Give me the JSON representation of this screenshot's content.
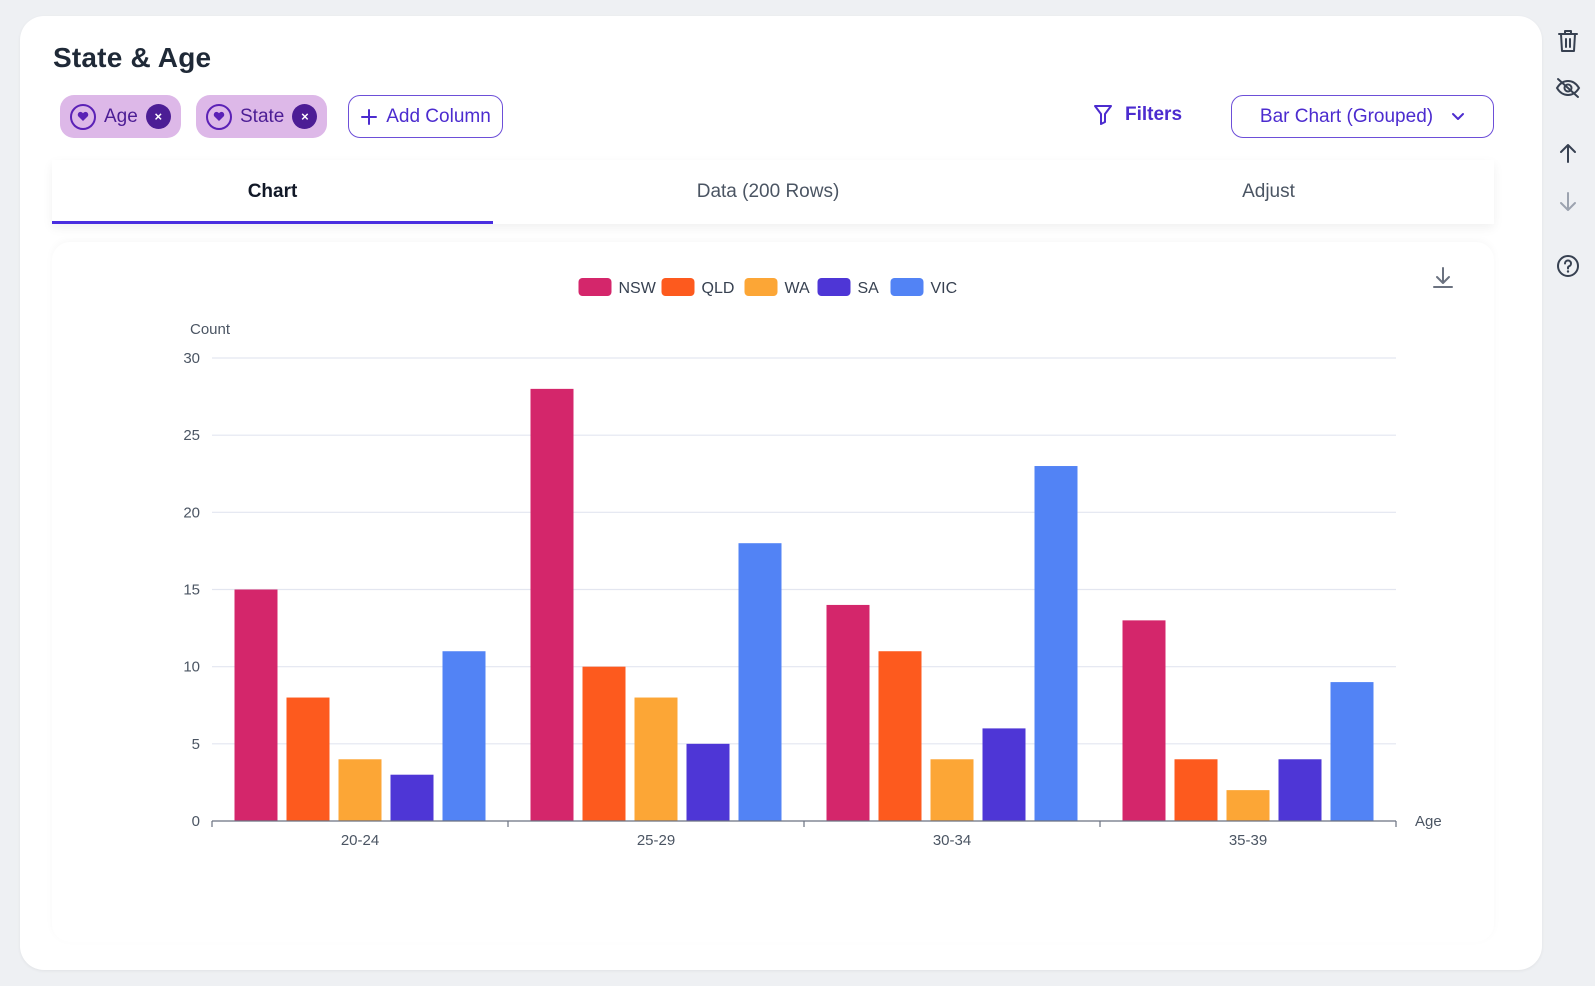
{
  "card": {
    "title": "State & Age",
    "chips": [
      {
        "label": "Age",
        "remove": "×"
      },
      {
        "label": "State",
        "remove": "×"
      }
    ],
    "add_column_label": "Add Column",
    "filters_label": "Filters",
    "chart_type_selected": "Bar Chart (Grouped)",
    "tabs": [
      {
        "label": "Chart",
        "active": true
      },
      {
        "label": "Data (200 Rows)",
        "active": false
      },
      {
        "label": "Adjust",
        "active": false
      }
    ]
  },
  "colors": {
    "accent": "#4a2fe0",
    "chip_bg": "#ddb8e8",
    "NSW": "#d4266b",
    "QLD": "#fd5a1e",
    "WA": "#fca636",
    "SA": "#4e36d6",
    "VIC": "#5283f5"
  },
  "icons": {
    "trash": "trash-icon",
    "hide": "eye-off-icon",
    "up": "arrow-up-icon",
    "down": "arrow-down-icon",
    "help": "help-icon",
    "download": "download-icon"
  },
  "chart_data": {
    "type": "bar",
    "categories": [
      "20-24",
      "25-29",
      "30-34",
      "35-39"
    ],
    "series": [
      {
        "name": "NSW",
        "values": [
          15,
          28,
          14,
          13
        ]
      },
      {
        "name": "QLD",
        "values": [
          8,
          10,
          11,
          4
        ]
      },
      {
        "name": "WA",
        "values": [
          4,
          8,
          4,
          2
        ]
      },
      {
        "name": "SA",
        "values": [
          3,
          5,
          6,
          4
        ]
      },
      {
        "name": "VIC",
        "values": [
          11,
          18,
          23,
          9
        ]
      }
    ],
    "xlabel": "Age",
    "ylabel": "Count",
    "ylim": [
      0,
      30
    ],
    "yticks": [
      0,
      5,
      10,
      15,
      20,
      25,
      30
    ],
    "legend": "top-center",
    "grid": true
  }
}
